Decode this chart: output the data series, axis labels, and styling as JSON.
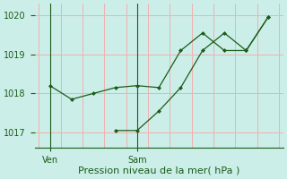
{
  "xlabel": "Pression niveau de la mer( hPa )",
  "background_color": "#cceee8",
  "grid_color_v": "#f0b0b0",
  "grid_color_h": "#f0b0b0",
  "line_color": "#1a5c1a",
  "ylim": [
    1016.6,
    1020.3
  ],
  "yticks": [
    1017,
    1018,
    1019,
    1020
  ],
  "xlim": [
    -0.2,
    11.2
  ],
  "ven_x": 0.5,
  "sam_x": 4.5,
  "series1_x": [
    0.5,
    1.5,
    2.5,
    3.5,
    4.5,
    5.5,
    6.5,
    7.5,
    8.5,
    9.5,
    10.5
  ],
  "series1_y": [
    1018.2,
    1017.85,
    1018.0,
    1018.15,
    1018.2,
    1018.15,
    1019.1,
    1019.55,
    1019.1,
    1019.1,
    1019.95
  ],
  "series2_x": [
    3.5,
    4.5,
    5.5,
    6.5,
    7.5,
    8.5,
    9.5,
    10.5
  ],
  "series2_y": [
    1017.05,
    1017.05,
    1017.55,
    1018.15,
    1019.1,
    1019.55,
    1019.1,
    1019.95
  ],
  "ven_label": "Ven",
  "sam_label": "Sam",
  "xlabel_fontsize": 8,
  "tick_fontsize": 7,
  "n_vcols": 12,
  "n_hrows": 5
}
